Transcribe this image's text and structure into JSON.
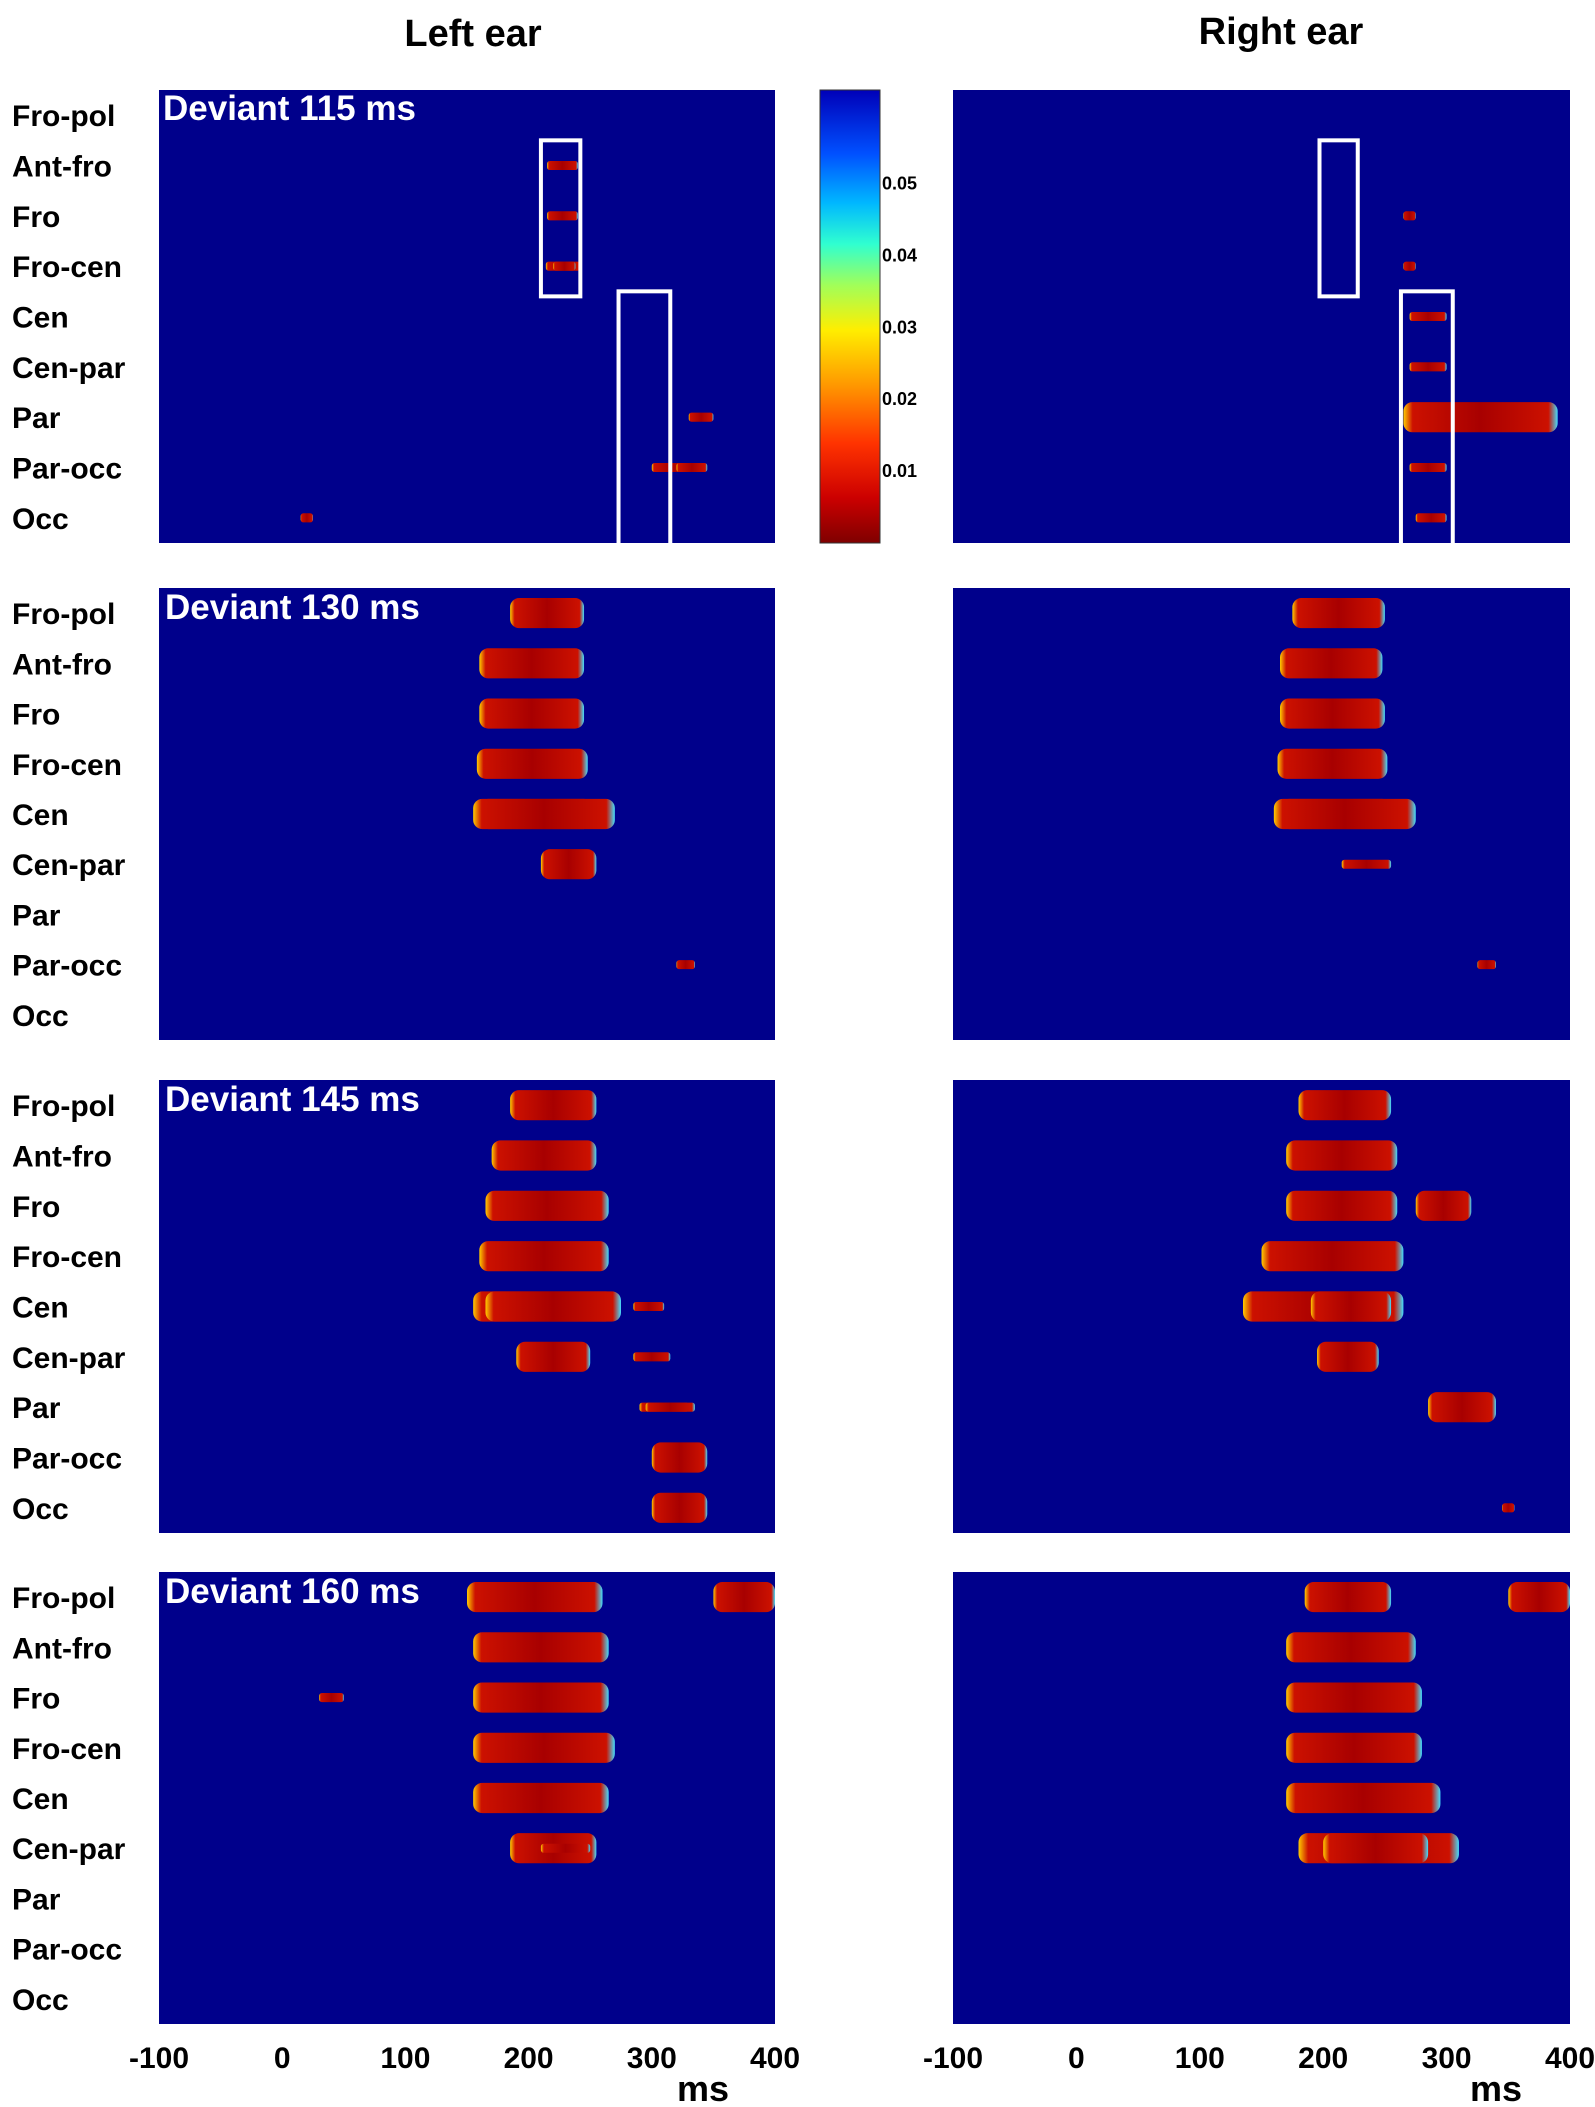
{
  "chart_data": {
    "type": "heatmap",
    "columns": [
      "Left ear",
      "Right ear"
    ],
    "rows": [
      "Fro-pol",
      "Ant-fro",
      "Fro",
      "Fro-cen",
      "Cen",
      "Cen-par",
      "Par",
      "Par-occ",
      "Occ"
    ],
    "panels": [
      "Deviant 115 ms",
      "Deviant 130 ms",
      "Deviant 145 ms",
      "Deviant 160 ms"
    ],
    "x_ticks": [
      "-100",
      "0",
      "100",
      "200",
      "300",
      "400"
    ],
    "x_tick_values": [
      -100,
      0,
      100,
      200,
      300,
      400
    ],
    "xlabel": "ms",
    "xlim": [
      -100,
      400
    ],
    "colorbar": {
      "ticks": [
        "0.05",
        "0.04",
        "0.03",
        "0.02",
        "0.01"
      ],
      "tick_values": [
        0.05,
        0.04,
        0.03,
        0.02,
        0.01
      ],
      "range": [
        0,
        0.063
      ],
      "colormap": "jet-reversed"
    },
    "highlight_boxes": {
      "Left ear": [
        {
          "x_range": [
            210,
            242
          ],
          "rows": [
            "Ant-fro",
            "Fro-cen"
          ]
        },
        {
          "x_range": [
            273,
            315
          ],
          "rows": [
            "Cen",
            "Occ"
          ]
        }
      ],
      "Right ear": [
        {
          "x_range": [
            197,
            228
          ],
          "rows": [
            "Ant-fro",
            "Fro-cen"
          ]
        },
        {
          "x_range": [
            263,
            305
          ],
          "rows": [
            "Cen",
            "Occ"
          ]
        }
      ]
    },
    "significant_segments": {
      "Left ear": [
        [
          {
            "row": "Ant-fro",
            "start": 215,
            "end": 240
          },
          {
            "row": "Fro",
            "start": 215,
            "end": 240
          },
          {
            "row": "Fro-cen",
            "start": 214,
            "end": 242
          },
          {
            "row": "Fro-cen",
            "start": 220,
            "end": 238
          },
          {
            "row": "Par",
            "start": 330,
            "end": 350
          },
          {
            "row": "Par-occ",
            "start": 300,
            "end": 330
          },
          {
            "row": "Par-occ",
            "start": 320,
            "end": 345
          },
          {
            "row": "Occ",
            "start": 15,
            "end": 25
          }
        ],
        [
          {
            "row": "Fro-pol",
            "start": 185,
            "end": 245
          },
          {
            "row": "Ant-fro",
            "start": 160,
            "end": 245
          },
          {
            "row": "Fro",
            "start": 160,
            "end": 245
          },
          {
            "row": "Fro-cen",
            "start": 158,
            "end": 248
          },
          {
            "row": "Cen",
            "start": 160,
            "end": 252
          },
          {
            "row": "Cen",
            "start": 155,
            "end": 270
          },
          {
            "row": "Cen-par",
            "start": 210,
            "end": 255
          },
          {
            "row": "Par-occ",
            "start": 320,
            "end": 335
          }
        ],
        [
          {
            "row": "Fro-pol",
            "start": 185,
            "end": 255
          },
          {
            "row": "Ant-fro",
            "start": 170,
            "end": 255
          },
          {
            "row": "Fro",
            "start": 165,
            "end": 265
          },
          {
            "row": "Fro-cen",
            "start": 160,
            "end": 265
          },
          {
            "row": "Cen",
            "start": 155,
            "end": 270
          },
          {
            "row": "Cen",
            "start": 165,
            "end": 275
          },
          {
            "row": "Cen-par",
            "start": 190,
            "end": 250
          },
          {
            "row": "Cen",
            "start": 285,
            "end": 310
          },
          {
            "row": "Cen-par",
            "start": 285,
            "end": 315
          },
          {
            "row": "Par",
            "start": 290,
            "end": 330
          },
          {
            "row": "Par",
            "start": 295,
            "end": 335
          },
          {
            "row": "Par-occ",
            "start": 300,
            "end": 345
          },
          {
            "row": "Occ",
            "start": 300,
            "end": 345
          }
        ],
        [
          {
            "row": "Fro-pol",
            "start": 150,
            "end": 260
          },
          {
            "row": "Ant-fro",
            "start": 155,
            "end": 265
          },
          {
            "row": "Fro",
            "start": 155,
            "end": 265
          },
          {
            "row": "Fro-cen",
            "start": 155,
            "end": 270
          },
          {
            "row": "Cen",
            "start": 155,
            "end": 265
          },
          {
            "row": "Cen-par",
            "start": 185,
            "end": 255
          },
          {
            "row": "Cen-par",
            "start": 210,
            "end": 250
          },
          {
            "row": "Fro",
            "start": 30,
            "end": 50
          },
          {
            "row": "Fro-pol",
            "start": 350,
            "end": 400
          }
        ]
      ],
      "Right ear": [
        [
          {
            "row": "Fro",
            "start": 265,
            "end": 275
          },
          {
            "row": "Fro-cen",
            "start": 265,
            "end": 275
          },
          {
            "row": "Cen",
            "start": 270,
            "end": 300
          },
          {
            "row": "Cen-par",
            "start": 270,
            "end": 300
          },
          {
            "row": "Par",
            "start": 265,
            "end": 390
          },
          {
            "row": "Par-occ",
            "start": 270,
            "end": 300
          },
          {
            "row": "Occ",
            "start": 275,
            "end": 300
          }
        ],
        [
          {
            "row": "Fro-pol",
            "start": 175,
            "end": 250
          },
          {
            "row": "Ant-fro",
            "start": 165,
            "end": 248
          },
          {
            "row": "Fro",
            "start": 165,
            "end": 250
          },
          {
            "row": "Fro-cen",
            "start": 163,
            "end": 252
          },
          {
            "row": "Cen",
            "start": 165,
            "end": 255
          },
          {
            "row": "Cen",
            "start": 160,
            "end": 275
          },
          {
            "row": "Cen-par",
            "start": 215,
            "end": 255
          },
          {
            "row": "Par-occ",
            "start": 325,
            "end": 340
          }
        ],
        [
          {
            "row": "Fro-pol",
            "start": 180,
            "end": 255
          },
          {
            "row": "Ant-fro",
            "start": 170,
            "end": 260
          },
          {
            "row": "Fro",
            "start": 170,
            "end": 260
          },
          {
            "row": "Fro-cen",
            "start": 150,
            "end": 265
          },
          {
            "row": "Cen",
            "start": 135,
            "end": 265
          },
          {
            "row": "Cen",
            "start": 190,
            "end": 255
          },
          {
            "row": "Cen-par",
            "start": 195,
            "end": 245
          },
          {
            "row": "Fro",
            "start": 275,
            "end": 320
          },
          {
            "row": "Par",
            "start": 285,
            "end": 340
          },
          {
            "row": "Occ",
            "start": 345,
            "end": 355
          }
        ],
        [
          {
            "row": "Fro-pol",
            "start": 185,
            "end": 255
          },
          {
            "row": "Ant-fro",
            "start": 170,
            "end": 275
          },
          {
            "row": "Fro",
            "start": 170,
            "end": 280
          },
          {
            "row": "Fro-cen",
            "start": 170,
            "end": 280
          },
          {
            "row": "Cen",
            "start": 170,
            "end": 295
          },
          {
            "row": "Cen-par",
            "start": 180,
            "end": 310
          },
          {
            "row": "Cen-par",
            "start": 200,
            "end": 285
          },
          {
            "row": "Fro-pol",
            "start": 350,
            "end": 400
          }
        ]
      ]
    }
  }
}
